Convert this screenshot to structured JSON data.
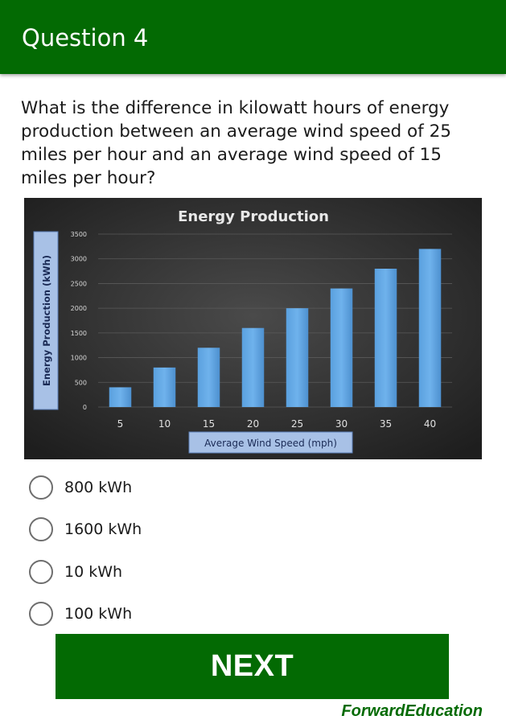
{
  "appbar": {
    "title": "Question 4"
  },
  "question": {
    "text": "What is the difference in kilowatt hours of energy production between an average wind speed of 25 miles per hour and an average wind speed of 15 miles per hour?"
  },
  "chart_data": {
    "type": "bar",
    "title": "Energy Production",
    "xlabel": "Average Wind Speed (mph)",
    "ylabel": "Energy Production (kWh)",
    "categories": [
      "5",
      "10",
      "15",
      "20",
      "25",
      "30",
      "35",
      "40"
    ],
    "values": [
      400,
      800,
      1200,
      1600,
      2000,
      2400,
      2800,
      3200
    ],
    "ylim": [
      0,
      3500
    ],
    "yticks": [
      "0",
      "500",
      "1000",
      "1500",
      "2000",
      "2500",
      "3000",
      "3500"
    ],
    "grid": true,
    "bar_color": "#5b9bd5",
    "background_color": "#2b2b2b"
  },
  "options": [
    {
      "label": "800 kWh"
    },
    {
      "label": "1600 kWh"
    },
    {
      "label": "10 kWh"
    },
    {
      "label": "100 kWh"
    }
  ],
  "next_button": {
    "label": "NEXT"
  },
  "brand": {
    "text": "ForwardEducation"
  },
  "colors": {
    "primary": "#036a03",
    "bar": "#5b9bd5"
  }
}
